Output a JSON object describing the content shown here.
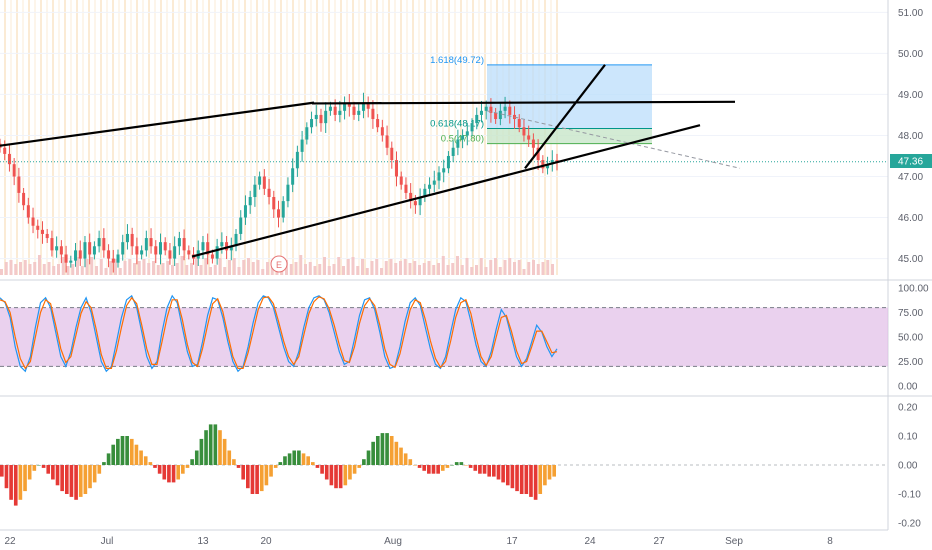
{
  "colors": {
    "background": "#ffffff",
    "grid": "#f0f3fa",
    "vband": "#fbe9d0",
    "candle_up": "#26a69a",
    "candle_down": "#ef5350",
    "volume": "#f3c9c9",
    "trendline": "#000000",
    "fib_upper_fill": "#bbdefb",
    "fib_lower_fill": "#c8e6c9",
    "fib_text_upper": "#2196f3",
    "fib_text_mid": "#009688",
    "fib_text_lower": "#4caf50",
    "last_price_line": "#26a69a",
    "last_price_bg": "#26a69a",
    "stoch_band": "#e1bee7",
    "stoch_k": "#2196f3",
    "stoch_d": "#ff6d00",
    "hist_pos_strong": "#388e3c",
    "hist_pos_weak": "#f5a033",
    "hist_neg_strong": "#e53935",
    "hist_neg_weak": "#f5a033",
    "earnings_marker": "#e57373",
    "separator": "#d1d4dc"
  },
  "chart_data": [
    {
      "type": "candlestick",
      "x_tick_labels": [
        "22",
        "Jul",
        "13",
        "20",
        "Aug",
        "17",
        "24",
        "27",
        "Sep",
        "8"
      ],
      "price_ticks": [
        "51.00",
        "50.00",
        "49.00",
        "48.00",
        "47.00",
        "46.00",
        "45.00"
      ],
      "ylim": [
        44.6,
        51.3
      ],
      "last_price": "47.36",
      "earnings_marker": "E",
      "fib_levels": [
        {
          "ratio_label": "1.618(49.72)",
          "price": 49.72
        },
        {
          "ratio_label": "0.618(48.17)",
          "price": 48.17
        },
        {
          "ratio_label": "0.5(47.80)",
          "price": 47.8
        }
      ],
      "close_series": [
        47.7,
        47.55,
        47.3,
        47.0,
        46.6,
        46.3,
        46.0,
        45.8,
        45.7,
        45.6,
        45.5,
        45.2,
        45.3,
        45.1,
        44.9,
        44.95,
        45.2,
        45.0,
        45.4,
        45.1,
        45.3,
        45.5,
        45.2,
        45.0,
        44.9,
        45.1,
        45.4,
        45.6,
        45.3,
        45.1,
        45.2,
        45.5,
        45.3,
        45.1,
        45.4,
        45.2,
        45.0,
        45.3,
        45.5,
        45.2,
        45.1,
        45.0,
        45.2,
        45.4,
        45.1,
        45.0,
        45.3,
        45.4,
        45.2,
        45.3,
        45.6,
        46.0,
        46.3,
        46.5,
        46.8,
        47.0,
        46.7,
        46.5,
        46.2,
        46.0,
        46.4,
        46.8,
        47.2,
        47.6,
        47.9,
        48.2,
        48.4,
        48.5,
        48.3,
        48.6,
        48.7,
        48.5,
        48.6,
        48.8,
        48.7,
        48.5,
        48.6,
        48.8,
        48.65,
        48.4,
        48.2,
        48.0,
        47.7,
        47.4,
        47.0,
        46.8,
        46.6,
        46.4,
        46.3,
        46.5,
        46.7,
        46.8,
        46.9,
        47.1,
        47.2,
        47.5,
        47.7,
        47.9,
        48.0,
        48.1,
        48.3,
        48.5,
        48.6,
        48.7,
        48.55,
        48.4,
        48.6,
        48.7,
        48.5,
        48.4,
        48.2,
        48.0,
        47.9,
        47.7,
        47.4,
        47.2,
        47.3,
        47.4,
        47.36
      ],
      "trendlines": [
        {
          "from": [
            0,
            47.75
          ],
          "to": [
            314,
            48.8
          ]
        },
        {
          "from": [
            312,
            48.78
          ],
          "to": [
            735,
            48.82
          ]
        },
        {
          "from": [
            192,
            45.05
          ],
          "to": [
            700,
            48.25
          ]
        },
        {
          "from": [
            525,
            47.2
          ],
          "to": [
            605,
            49.72
          ]
        }
      ]
    },
    {
      "type": "line",
      "name": "stochastic",
      "y_ticks": [
        "100.00",
        "75.00",
        "50.00",
        "25.00",
        "0.00"
      ],
      "ylim": [
        0,
        100
      ],
      "band": [
        20,
        80
      ],
      "series": [
        {
          "values": [
            90,
            85,
            70,
            40,
            20,
            15,
            30,
            60,
            85,
            90,
            80,
            55,
            30,
            20,
            35,
            60,
            80,
            90,
            75,
            50,
            25,
            15,
            20,
            45,
            70,
            88,
            92,
            80,
            55,
            30,
            18,
            25,
            55,
            80,
            92,
            85,
            60,
            35,
            20,
            22,
            45,
            72,
            90,
            88,
            70,
            45,
            25,
            15,
            20,
            40,
            65,
            85,
            92,
            90,
            80,
            60,
            40,
            25,
            20,
            35,
            60,
            80,
            90,
            92,
            88,
            75,
            55,
            35,
            22,
            25,
            48,
            72,
            88,
            90,
            78,
            55,
            30,
            18,
            20,
            40,
            66,
            85,
            90,
            82,
            60,
            38,
            22,
            18,
            30,
            55,
            78,
            90,
            86,
            66,
            42,
            25,
            20,
            35,
            58,
            78,
            70,
            50,
            30,
            20,
            28,
            45,
            62,
            55,
            40,
            30,
            38
          ]
        },
        {
          "values": [
            88,
            86,
            75,
            50,
            28,
            18,
            25,
            50,
            75,
            88,
            84,
            62,
            38,
            24,
            30,
            52,
            74,
            86,
            80,
            58,
            32,
            18,
            18,
            36,
            60,
            82,
            90,
            84,
            62,
            38,
            22,
            22,
            45,
            70,
            88,
            88,
            68,
            42,
            24,
            20,
            38,
            62,
            84,
            89,
            76,
            52,
            30,
            18,
            18,
            34,
            56,
            78,
            90,
            91,
            84,
            66,
            46,
            30,
            22,
            30,
            52,
            74,
            86,
            91,
            89,
            79,
            62,
            42,
            26,
            24,
            40,
            64,
            82,
            89,
            82,
            62,
            38,
            22,
            19,
            33,
            56,
            78,
            88,
            85,
            68,
            46,
            28,
            19,
            25,
            46,
            70,
            85,
            88,
            74,
            50,
            30,
            21,
            30,
            50,
            70,
            72,
            56,
            36,
            23,
            25,
            40,
            56,
            56,
            45,
            34,
            35
          ]
        }
      ]
    },
    {
      "type": "bar",
      "name": "histogram",
      "y_ticks": [
        "0.20",
        "0.10",
        "0.00",
        "-0.10",
        "-0.20"
      ],
      "ylim": [
        -0.22,
        0.22
      ],
      "values": [
        -0.04,
        -0.08,
        -0.12,
        -0.14,
        -0.12,
        -0.09,
        -0.05,
        -0.02,
        0.0,
        -0.01,
        -0.03,
        -0.05,
        -0.07,
        -0.09,
        -0.1,
        -0.11,
        -0.12,
        -0.11,
        -0.1,
        -0.08,
        -0.06,
        -0.03,
        0.01,
        0.04,
        0.07,
        0.09,
        0.1,
        0.1,
        0.09,
        0.07,
        0.05,
        0.03,
        0.01,
        -0.01,
        -0.03,
        -0.05,
        -0.06,
        -0.06,
        -0.05,
        -0.03,
        -0.01,
        0.02,
        0.05,
        0.09,
        0.12,
        0.14,
        0.14,
        0.12,
        0.09,
        0.05,
        0.02,
        -0.01,
        -0.05,
        -0.08,
        -0.1,
        -0.1,
        -0.09,
        -0.07,
        -0.04,
        -0.01,
        0.01,
        0.03,
        0.04,
        0.05,
        0.05,
        0.04,
        0.03,
        0.01,
        -0.01,
        -0.03,
        -0.05,
        -0.07,
        -0.08,
        -0.08,
        -0.07,
        -0.05,
        -0.03,
        -0.01,
        0.02,
        0.05,
        0.08,
        0.1,
        0.11,
        0.11,
        0.1,
        0.08,
        0.06,
        0.04,
        0.02,
        0.0,
        -0.01,
        -0.02,
        -0.03,
        -0.03,
        -0.03,
        -0.02,
        -0.01,
        0.0,
        0.01,
        0.01,
        0.0,
        -0.01,
        -0.02,
        -0.03,
        -0.03,
        -0.04,
        -0.04,
        -0.05,
        -0.06,
        -0.07,
        -0.08,
        -0.09,
        -0.1,
        -0.1,
        -0.11,
        -0.12,
        -0.1,
        -0.07,
        -0.05,
        -0.04
      ]
    }
  ]
}
